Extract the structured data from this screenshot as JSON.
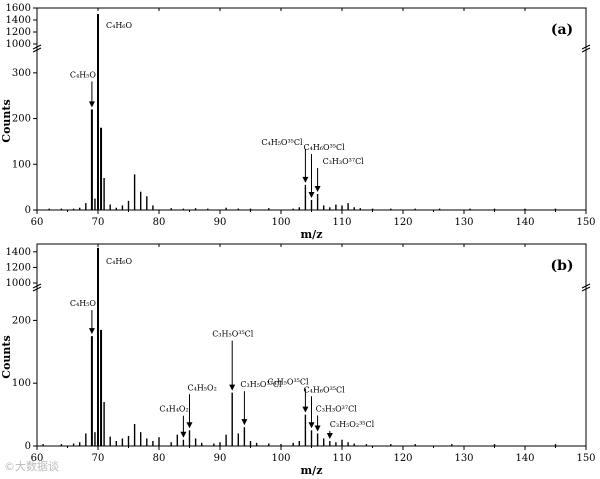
{
  "chart_data": [
    {
      "type": "bar",
      "panel_label": "(a)",
      "xlabel": "m/z",
      "ylabel": "Counts",
      "xlim": [
        60,
        150
      ],
      "ylim_lower": [
        0,
        350
      ],
      "ylim_upper": [
        1000,
        1600
      ],
      "axis_break": true,
      "x_ticks": [
        "60",
        "70",
        "80",
        "90",
        "100",
        "110",
        "120",
        "130",
        "140",
        "150"
      ],
      "y_ticks_lower": [
        "0",
        "100",
        "200",
        "300"
      ],
      "y_ticks_upper": [
        "1000",
        "1200",
        "1400",
        "1600"
      ],
      "peaks": {
        "x": [
          62,
          64,
          66,
          67,
          68,
          69,
          69.5,
          70,
          70.5,
          71,
          72,
          73,
          74,
          75,
          76,
          77,
          78,
          79,
          82,
          84,
          86,
          88,
          91,
          93,
          95,
          98,
          102,
          103,
          104,
          105,
          106,
          107,
          108,
          109,
          110,
          111,
          112,
          113,
          115,
          118,
          122,
          126,
          131,
          135,
          140,
          145
        ],
        "y": [
          3,
          3,
          3,
          5,
          15,
          220,
          25,
          1500,
          180,
          70,
          12,
          5,
          10,
          20,
          78,
          40,
          30,
          10,
          4,
          3,
          4,
          3,
          5,
          3,
          3,
          4,
          3,
          6,
          55,
          22,
          35,
          10,
          6,
          12,
          10,
          15,
          6,
          4,
          3,
          3,
          3,
          3,
          3,
          3,
          3,
          3
        ]
      },
      "annotations": [
        {
          "label": "C₄H₆O",
          "x": 70
        },
        {
          "label": "C₄H₅O",
          "x": 69
        },
        {
          "label": "C₄H₅O³⁵Cl",
          "x": 104
        },
        {
          "label": "C₄H₆O³⁵Cl",
          "x": 105
        },
        {
          "label": "C₃H₃O³⁷Cl",
          "x": 106
        }
      ]
    },
    {
      "type": "bar",
      "panel_label": "(b)",
      "xlabel": "m/z",
      "ylabel": "Counts",
      "xlim": [
        60,
        150
      ],
      "ylim_lower": [
        0,
        250
      ],
      "ylim_upper": [
        1000,
        1500
      ],
      "axis_break": true,
      "x_ticks": [
        "60",
        "70",
        "80",
        "90",
        "100",
        "110",
        "120",
        "130",
        "140",
        "150"
      ],
      "y_ticks_lower": [
        "0",
        "100",
        "200"
      ],
      "y_ticks_upper": [
        "1000",
        "1200",
        "1400"
      ],
      "peaks": {
        "x": [
          61,
          64,
          66,
          67,
          68,
          69,
          69.5,
          70,
          70.5,
          71,
          72,
          73,
          74,
          75,
          76,
          77,
          78,
          79,
          80,
          82,
          83,
          84,
          85,
          86,
          87,
          89,
          90,
          91,
          92,
          93,
          94,
          95,
          96,
          98,
          100,
          102,
          103,
          104,
          105,
          106,
          107,
          108,
          109,
          110,
          111,
          112,
          114,
          118,
          122,
          128,
          135,
          145
        ],
        "y": [
          3,
          3,
          4,
          6,
          20,
          175,
          22,
          1450,
          185,
          70,
          15,
          8,
          12,
          16,
          35,
          22,
          12,
          8,
          14,
          6,
          18,
          10,
          25,
          12,
          5,
          4,
          6,
          18,
          85,
          20,
          30,
          8,
          5,
          4,
          3,
          5,
          8,
          50,
          25,
          20,
          12,
          8,
          6,
          10,
          6,
          4,
          3,
          3,
          3,
          3,
          3,
          3
        ]
      },
      "annotations": [
        {
          "label": "C₄H₆O",
          "x": 70
        },
        {
          "label": "C₄H₅O",
          "x": 69
        },
        {
          "label": "C₄H₄O₂",
          "x": 84
        },
        {
          "label": "C₄H₅O₂",
          "x": 85
        },
        {
          "label": "C₃H₅O³⁵Cl",
          "x": 92
        },
        {
          "label": "C₃H₅O³⁷Cl",
          "x": 94
        },
        {
          "label": "C₄H₅O³⁵Cl",
          "x": 104
        },
        {
          "label": "C₄H₆O³⁵Cl",
          "x": 105
        },
        {
          "label": "C₃H₃O³⁷Cl",
          "x": 106
        },
        {
          "label": "C₃H₅O₂³⁵Cl",
          "x": 108
        }
      ]
    }
  ],
  "watermark": "©大数据谈"
}
